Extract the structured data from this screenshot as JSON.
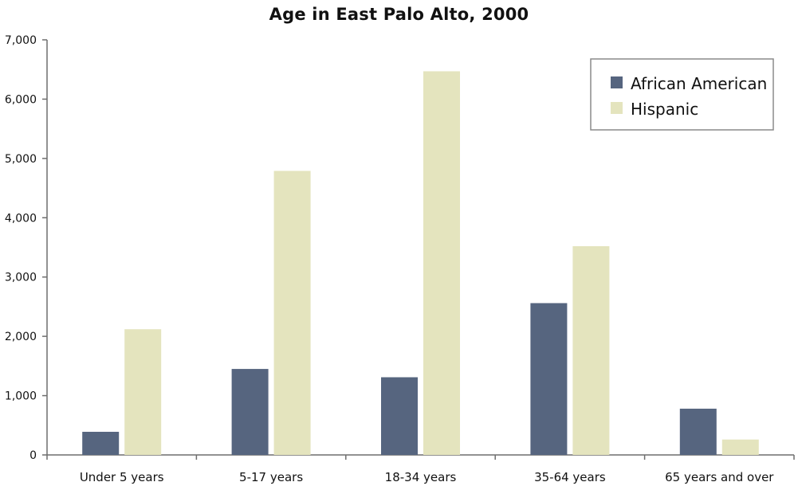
{
  "chart_data": {
    "type": "bar",
    "title": "Age in East Palo Alto, 2000",
    "xlabel": "",
    "ylabel": "",
    "categories": [
      "Under 5 years",
      "5-17 years",
      "18-34 years",
      "35-64 years",
      "65 years and over"
    ],
    "series": [
      {
        "name": "African American",
        "color": "#56657f",
        "values": [
          390,
          1450,
          1310,
          2560,
          780
        ]
      },
      {
        "name": "Hispanic",
        "color": "#e4e4be",
        "values": [
          2120,
          4790,
          6470,
          3520,
          260
        ]
      }
    ],
    "ylim": [
      0,
      7000
    ],
    "yticks": [
      0,
      1000,
      2000,
      3000,
      4000,
      5000,
      6000,
      7000
    ],
    "ytick_labels": [
      "0",
      "1,000",
      "2,000",
      "3,000",
      "4,000",
      "5,000",
      "6,000",
      "7,000"
    ],
    "grid": false,
    "legend_position": "top-right"
  }
}
